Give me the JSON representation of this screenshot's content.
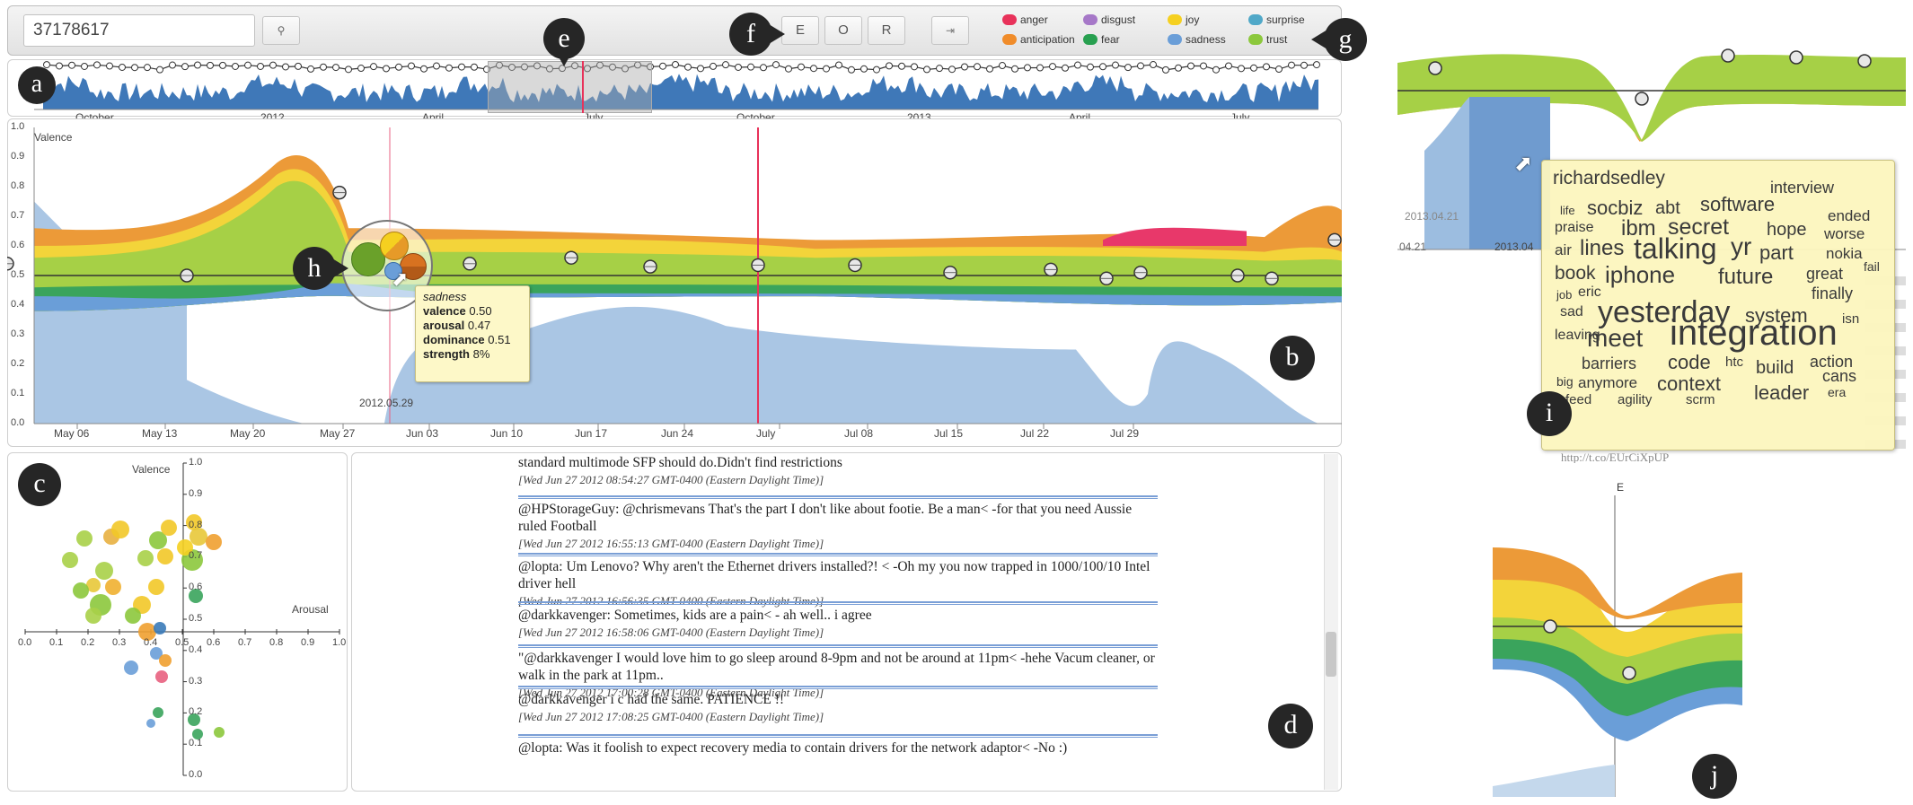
{
  "search": {
    "value": "37178617"
  },
  "toggles": [
    "E",
    "O",
    "R"
  ],
  "emotions": [
    {
      "name": "anger",
      "color": "#e8325a"
    },
    {
      "name": "anticipation",
      "color": "#f08c2a"
    },
    {
      "name": "disgust",
      "color": "#a678c8"
    },
    {
      "name": "fear",
      "color": "#28a050"
    },
    {
      "name": "joy",
      "color": "#f5d020"
    },
    {
      "name": "sadness",
      "color": "#6a9ed8"
    },
    {
      "name": "surprise",
      "color": "#50a8c8"
    },
    {
      "name": "trust",
      "color": "#8cc83c"
    }
  ],
  "markers": {
    "a": "a",
    "b": "b",
    "c": "c",
    "d": "d",
    "e": "e",
    "f": "f",
    "g": "g",
    "h": "h",
    "i": "i",
    "j": "j"
  },
  "overview": {
    "labels": [
      "October",
      "2012",
      "April",
      "July",
      "October",
      "2013",
      "April",
      "July"
    ]
  },
  "main": {
    "ylabel": "Valence",
    "yticks": [
      "0.0",
      "0.1",
      "0.2",
      "0.3",
      "0.4",
      "0.5",
      "0.6",
      "0.7",
      "0.8",
      "0.9",
      "1.0"
    ],
    "xticks": [
      "May 06",
      "May 13",
      "May 20",
      "May 27",
      "Jun 03",
      "Jun 10",
      "Jun 17",
      "Jun 24",
      "July",
      "Jul 08",
      "Jul 15",
      "Jul 22",
      "Jul 29"
    ],
    "date_label": "2012.05.29"
  },
  "tooltip": {
    "title": "sadness",
    "rows": [
      {
        "k": "valence",
        "v": "0.50"
      },
      {
        "k": "arousal",
        "v": "0.47"
      },
      {
        "k": "dominance",
        "v": "0.51"
      },
      {
        "k": "strength",
        "v": "8%"
      }
    ]
  },
  "scatter": {
    "valence_label": "Valence",
    "arousal_label": "Arousal",
    "xticks": [
      "0.0",
      "0.1",
      "0.2",
      "0.3",
      "0.4",
      "0.5",
      "0.6",
      "0.7",
      "0.8",
      "0.9",
      "1.0"
    ],
    "yticks": [
      "1.0",
      "0.9",
      "0.8",
      "0.7",
      "0.6",
      "0.5",
      "0.4",
      "0.3",
      "0.2",
      "0.1",
      "0.0"
    ]
  },
  "tweets": [
    {
      "text": "standard multimode SFP should do.Didn't find restrictions",
      "ts": "[Wed Jun 27 2012 08:54:27 GMT-0400 (Eastern Daylight Time)]"
    },
    {
      "text": "@HPStorageGuy: @chrismevans That's the part I don't like about footie. Be a man< -for that you need Aussie ruled Football",
      "ts": "[Wed Jun 27 2012 16:55:13 GMT-0400 (Eastern Daylight Time)]"
    },
    {
      "text": "@lopta: Um Lenovo? Why aren't the Ethernet drivers installed?! < -Oh my you now trapped in 1000/100/10 Intel driver hell",
      "ts": "[Wed Jun 27 2012 16:56:35 GMT-0400 (Eastern Daylight Time)]"
    },
    {
      "text": "@darkkavenger: Sometimes, kids are a pain< - ah well.. i agree",
      "ts": "[Wed Jun 27 2012 16:58:06 GMT-0400 (Eastern Daylight Time)]"
    },
    {
      "text": "\"@darkkavenger I would love him to go sleep around 8-9pm and not be around at 11pm< -hehe Vacum cleaner, or walk in the park at 11pm..",
      "ts": "[Wed Jun 27 2012 17:00:28 GMT-0400 (Eastern Daylight Time)]"
    },
    {
      "text": "@darkkavenger i c had the same. PATIENCE !!",
      "ts": "[Wed Jun 27 2012 17:08:25 GMT-0400 (Eastern Daylight Time)]"
    },
    {
      "text": "@lopta: Was it foolish to expect recovery media to contain drivers for the network adaptor< -No :)",
      "ts": ""
    }
  ],
  "inset_i": {
    "dates": [
      "2013.04.21",
      "2013.04"
    ],
    "axis_dates": [
      "04.21",
      "2013.04"
    ],
    "bottom_text": "http://t.co/EUrCiXpUP",
    "words": [
      "richardsedley",
      "interview",
      "life",
      "socbiz",
      "abt",
      "software",
      "ended",
      "praise",
      "ibm",
      "secret",
      "hope",
      "worse",
      "air",
      "lines",
      "talking",
      "yr",
      "part",
      "nokia",
      "book",
      "iphone",
      "future",
      "great",
      "fail",
      "job",
      "eric",
      "finally",
      "sad",
      "yesterday",
      "system",
      "isn",
      "leaving",
      "meet",
      "integration",
      "barriers",
      "code",
      "htc",
      "build",
      "action",
      "big",
      "anymore",
      "context",
      "cans",
      "feed",
      "agility",
      "scrm",
      "leader",
      "era"
    ]
  },
  "inset_j": {
    "axis_label": "E"
  }
}
